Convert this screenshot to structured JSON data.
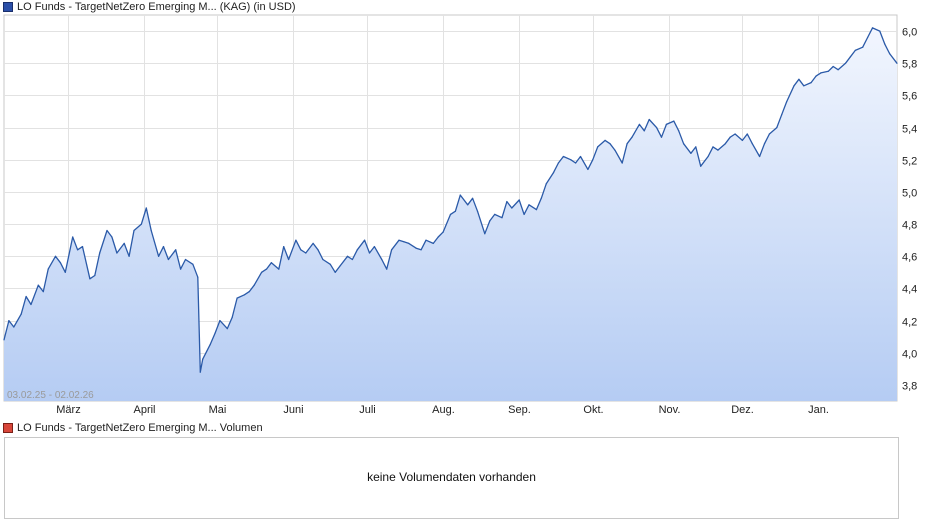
{
  "legend": {
    "price_label": "LO Funds - TargetNetZero Emerging M... (KAG)  (in USD)",
    "volume_label": "LO Funds - TargetNetZero Emerging M...  Volumen",
    "price_color": "#2b4fa8",
    "volume_color": "#d8463a"
  },
  "volume": {
    "empty_message": "keine Volumendaten vorhanden"
  },
  "chart_data": {
    "type": "area",
    "date_range_label": "03.02.25 - 02.02.26",
    "x_axis": {
      "start": "2025-02-03",
      "end": "2026-02-02",
      "tick_labels": [
        {
          "label": "März",
          "date": "2025-03-01"
        },
        {
          "label": "April",
          "date": "2025-04-01"
        },
        {
          "label": "Mai",
          "date": "2025-05-01"
        },
        {
          "label": "Juni",
          "date": "2025-06-01"
        },
        {
          "label": "Juli",
          "date": "2025-07-01"
        },
        {
          "label": "Aug.",
          "date": "2025-08-01"
        },
        {
          "label": "Sep.",
          "date": "2025-09-01"
        },
        {
          "label": "Okt.",
          "date": "2025-10-01"
        },
        {
          "label": "Nov.",
          "date": "2025-11-01"
        },
        {
          "label": "Dez.",
          "date": "2025-12-01"
        },
        {
          "label": "Jan.",
          "date": "2026-01-01"
        }
      ]
    },
    "y_axis": {
      "ylim": [
        3.7,
        6.1
      ],
      "ticks": [
        3.8,
        4.0,
        4.2,
        4.4,
        4.6,
        4.8,
        5.0,
        5.2,
        5.4,
        5.6,
        5.8,
        6.0
      ],
      "tick_labels": [
        "3,8",
        "4,0",
        "4,2",
        "4,4",
        "4,6",
        "4,8",
        "5,0",
        "5,2",
        "5,4",
        "5,6",
        "5,8",
        "6,0"
      ],
      "position": "right"
    },
    "grid": true,
    "line_color": "#2b5aa8",
    "fill_top_color": "#f2f6fe",
    "fill_bottom_color": "#b5ccf3",
    "series": [
      {
        "values": [
          [
            "2025-02-03",
            4.08
          ],
          [
            "2025-02-05",
            4.2
          ],
          [
            "2025-02-07",
            4.16
          ],
          [
            "2025-02-10",
            4.24
          ],
          [
            "2025-02-12",
            4.35
          ],
          [
            "2025-02-14",
            4.3
          ],
          [
            "2025-02-17",
            4.42
          ],
          [
            "2025-02-19",
            4.38
          ],
          [
            "2025-02-21",
            4.52
          ],
          [
            "2025-02-24",
            4.6
          ],
          [
            "2025-02-26",
            4.56
          ],
          [
            "2025-02-28",
            4.5
          ],
          [
            "2025-03-03",
            4.72
          ],
          [
            "2025-03-05",
            4.64
          ],
          [
            "2025-03-07",
            4.66
          ],
          [
            "2025-03-10",
            4.46
          ],
          [
            "2025-03-12",
            4.48
          ],
          [
            "2025-03-14",
            4.62
          ],
          [
            "2025-03-17",
            4.76
          ],
          [
            "2025-03-19",
            4.72
          ],
          [
            "2025-03-21",
            4.62
          ],
          [
            "2025-03-24",
            4.68
          ],
          [
            "2025-03-26",
            4.6
          ],
          [
            "2025-03-28",
            4.76
          ],
          [
            "2025-03-31",
            4.8
          ],
          [
            "2025-04-02",
            4.9
          ],
          [
            "2025-04-04",
            4.76
          ],
          [
            "2025-04-07",
            4.6
          ],
          [
            "2025-04-09",
            4.66
          ],
          [
            "2025-04-11",
            4.58
          ],
          [
            "2025-04-14",
            4.64
          ],
          [
            "2025-04-16",
            4.52
          ],
          [
            "2025-04-18",
            4.58
          ],
          [
            "2025-04-21",
            4.55
          ],
          [
            "2025-04-23",
            4.47
          ],
          [
            "2025-04-24",
            3.88
          ],
          [
            "2025-04-25",
            3.96
          ],
          [
            "2025-04-28",
            4.05
          ],
          [
            "2025-04-30",
            4.12
          ],
          [
            "2025-05-02",
            4.2
          ],
          [
            "2025-05-05",
            4.15
          ],
          [
            "2025-05-07",
            4.22
          ],
          [
            "2025-05-09",
            4.34
          ],
          [
            "2025-05-12",
            4.36
          ],
          [
            "2025-05-14",
            4.38
          ],
          [
            "2025-05-16",
            4.42
          ],
          [
            "2025-05-19",
            4.5
          ],
          [
            "2025-05-21",
            4.52
          ],
          [
            "2025-05-23",
            4.56
          ],
          [
            "2025-05-26",
            4.52
          ],
          [
            "2025-05-28",
            4.66
          ],
          [
            "2025-05-30",
            4.58
          ],
          [
            "2025-06-02",
            4.7
          ],
          [
            "2025-06-04",
            4.64
          ],
          [
            "2025-06-06",
            4.62
          ],
          [
            "2025-06-09",
            4.68
          ],
          [
            "2025-06-11",
            4.64
          ],
          [
            "2025-06-13",
            4.58
          ],
          [
            "2025-06-16",
            4.55
          ],
          [
            "2025-06-18",
            4.5
          ],
          [
            "2025-06-20",
            4.54
          ],
          [
            "2025-06-23",
            4.6
          ],
          [
            "2025-06-25",
            4.58
          ],
          [
            "2025-06-27",
            4.64
          ],
          [
            "2025-06-30",
            4.7
          ],
          [
            "2025-07-02",
            4.62
          ],
          [
            "2025-07-04",
            4.66
          ],
          [
            "2025-07-07",
            4.58
          ],
          [
            "2025-07-09",
            4.52
          ],
          [
            "2025-07-11",
            4.64
          ],
          [
            "2025-07-14",
            4.7
          ],
          [
            "2025-07-16",
            4.69
          ],
          [
            "2025-07-18",
            4.68
          ],
          [
            "2025-07-21",
            4.65
          ],
          [
            "2025-07-23",
            4.64
          ],
          [
            "2025-07-25",
            4.7
          ],
          [
            "2025-07-28",
            4.68
          ],
          [
            "2025-07-30",
            4.72
          ],
          [
            "2025-08-01",
            4.75
          ],
          [
            "2025-08-04",
            4.86
          ],
          [
            "2025-08-06",
            4.88
          ],
          [
            "2025-08-08",
            4.98
          ],
          [
            "2025-08-11",
            4.92
          ],
          [
            "2025-08-13",
            4.96
          ],
          [
            "2025-08-15",
            4.88
          ],
          [
            "2025-08-18",
            4.74
          ],
          [
            "2025-08-20",
            4.82
          ],
          [
            "2025-08-22",
            4.86
          ],
          [
            "2025-08-25",
            4.84
          ],
          [
            "2025-08-27",
            4.94
          ],
          [
            "2025-08-29",
            4.9
          ],
          [
            "2025-09-01",
            4.95
          ],
          [
            "2025-09-03",
            4.86
          ],
          [
            "2025-09-05",
            4.92
          ],
          [
            "2025-09-08",
            4.89
          ],
          [
            "2025-09-10",
            4.96
          ],
          [
            "2025-09-12",
            5.05
          ],
          [
            "2025-09-15",
            5.12
          ],
          [
            "2025-09-17",
            5.18
          ],
          [
            "2025-09-19",
            5.22
          ],
          [
            "2025-09-22",
            5.2
          ],
          [
            "2025-09-24",
            5.18
          ],
          [
            "2025-09-26",
            5.22
          ],
          [
            "2025-09-29",
            5.14
          ],
          [
            "2025-10-01",
            5.2
          ],
          [
            "2025-10-03",
            5.28
          ],
          [
            "2025-10-06",
            5.32
          ],
          [
            "2025-10-08",
            5.3
          ],
          [
            "2025-10-10",
            5.26
          ],
          [
            "2025-10-13",
            5.18
          ],
          [
            "2025-10-15",
            5.3
          ],
          [
            "2025-10-17",
            5.34
          ],
          [
            "2025-10-20",
            5.42
          ],
          [
            "2025-10-22",
            5.38
          ],
          [
            "2025-10-24",
            5.45
          ],
          [
            "2025-10-27",
            5.4
          ],
          [
            "2025-10-29",
            5.34
          ],
          [
            "2025-10-31",
            5.42
          ],
          [
            "2025-11-03",
            5.44
          ],
          [
            "2025-11-05",
            5.38
          ],
          [
            "2025-11-07",
            5.3
          ],
          [
            "2025-11-10",
            5.24
          ],
          [
            "2025-11-12",
            5.28
          ],
          [
            "2025-11-14",
            5.16
          ],
          [
            "2025-11-17",
            5.22
          ],
          [
            "2025-11-19",
            5.28
          ],
          [
            "2025-11-21",
            5.26
          ],
          [
            "2025-11-24",
            5.3
          ],
          [
            "2025-11-26",
            5.34
          ],
          [
            "2025-11-28",
            5.36
          ],
          [
            "2025-12-01",
            5.32
          ],
          [
            "2025-12-03",
            5.36
          ],
          [
            "2025-12-05",
            5.3
          ],
          [
            "2025-12-08",
            5.22
          ],
          [
            "2025-12-10",
            5.3
          ],
          [
            "2025-12-12",
            5.36
          ],
          [
            "2025-12-15",
            5.4
          ],
          [
            "2025-12-17",
            5.48
          ],
          [
            "2025-12-19",
            5.56
          ],
          [
            "2025-12-22",
            5.66
          ],
          [
            "2025-12-24",
            5.7
          ],
          [
            "2025-12-26",
            5.66
          ],
          [
            "2025-12-29",
            5.68
          ],
          [
            "2025-12-31",
            5.72
          ],
          [
            "2026-01-02",
            5.74
          ],
          [
            "2026-01-05",
            5.75
          ],
          [
            "2026-01-07",
            5.78
          ],
          [
            "2026-01-09",
            5.76
          ],
          [
            "2026-01-12",
            5.8
          ],
          [
            "2026-01-14",
            5.84
          ],
          [
            "2026-01-16",
            5.88
          ],
          [
            "2026-01-19",
            5.9
          ],
          [
            "2026-01-21",
            5.96
          ],
          [
            "2026-01-23",
            6.02
          ],
          [
            "2026-01-26",
            6.0
          ],
          [
            "2026-01-28",
            5.92
          ],
          [
            "2026-01-30",
            5.86
          ],
          [
            "2026-02-02",
            5.8
          ]
        ]
      }
    ]
  }
}
